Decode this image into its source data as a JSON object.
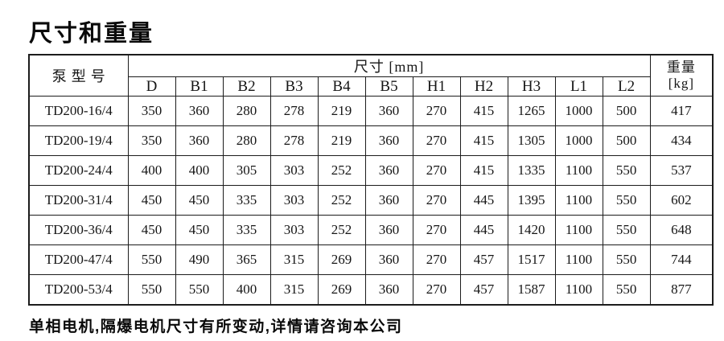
{
  "title": "尺寸和重量",
  "footnote": "单相电机,隔爆电机尺寸有所变动,详情请咨询本公司",
  "table": {
    "model_header": "泵型号",
    "dim_header": "尺寸 [mm]",
    "weight_header": [
      "重量",
      "[kg]"
    ],
    "columns": [
      "D",
      "B1",
      "B2",
      "B3",
      "B4",
      "B5",
      "H1",
      "H2",
      "H3",
      "L1",
      "L2"
    ],
    "rows": [
      {
        "model": "TD200-16/4",
        "values": [
          350,
          360,
          280,
          278,
          219,
          360,
          270,
          415,
          1265,
          1000,
          500
        ],
        "weight": 417
      },
      {
        "model": "TD200-19/4",
        "values": [
          350,
          360,
          280,
          278,
          219,
          360,
          270,
          415,
          1305,
          1000,
          500
        ],
        "weight": 434
      },
      {
        "model": "TD200-24/4",
        "values": [
          400,
          400,
          305,
          303,
          252,
          360,
          270,
          415,
          1335,
          1100,
          550
        ],
        "weight": 537
      },
      {
        "model": "TD200-31/4",
        "values": [
          450,
          450,
          335,
          303,
          252,
          360,
          270,
          445,
          1395,
          1100,
          550
        ],
        "weight": 602
      },
      {
        "model": "TD200-36/4",
        "values": [
          450,
          450,
          335,
          303,
          252,
          360,
          270,
          445,
          1420,
          1100,
          550
        ],
        "weight": 648
      },
      {
        "model": "TD200-47/4",
        "values": [
          550,
          490,
          365,
          315,
          269,
          360,
          270,
          457,
          1517,
          1100,
          550
        ],
        "weight": 744
      },
      {
        "model": "TD200-53/4",
        "values": [
          550,
          550,
          400,
          315,
          269,
          360,
          270,
          457,
          1587,
          1100,
          550
        ],
        "weight": 877
      }
    ]
  },
  "colors": {
    "background": "#ffffff",
    "text": "#111111",
    "border": "#1c1c1c"
  }
}
